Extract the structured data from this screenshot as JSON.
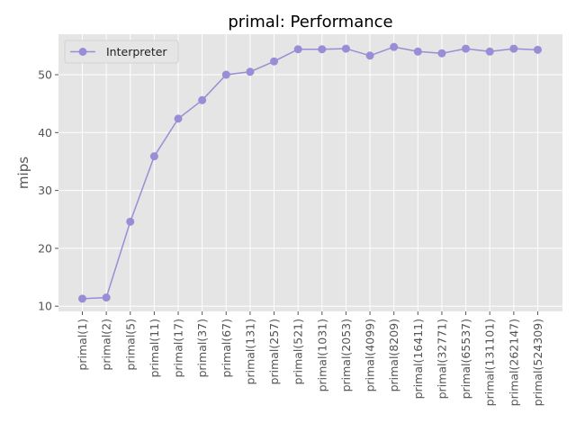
{
  "chart_data": {
    "type": "line",
    "title": "primal: Performance",
    "xlabel": "",
    "ylabel": "mips",
    "categories": [
      "primal(1)",
      "primal(2)",
      "primal(5)",
      "primal(11)",
      "primal(17)",
      "primal(37)",
      "primal(67)",
      "primal(131)",
      "primal(257)",
      "primal(521)",
      "primal(1031)",
      "primal(2053)",
      "primal(4099)",
      "primal(8209)",
      "primal(16411)",
      "primal(32771)",
      "primal(65537)",
      "primal(131101)",
      "primal(262147)",
      "primal(524309)"
    ],
    "series": [
      {
        "name": "Interpreter",
        "color": "#988ED5",
        "marker": "circle",
        "values": [
          11.3,
          11.5,
          24.6,
          35.9,
          42.4,
          45.6,
          50.0,
          50.5,
          52.3,
          54.4,
          54.4,
          54.5,
          53.3,
          54.8,
          54.0,
          53.7,
          54.5,
          54.0,
          54.5,
          54.3
        ]
      }
    ],
    "yticks": [
      10,
      20,
      30,
      40,
      50
    ],
    "ylim": [
      9.1,
      57.0
    ],
    "grid": true,
    "legend": "upper-left",
    "background": "#E5E5E5",
    "grid_color": "#FFFFFF"
  }
}
